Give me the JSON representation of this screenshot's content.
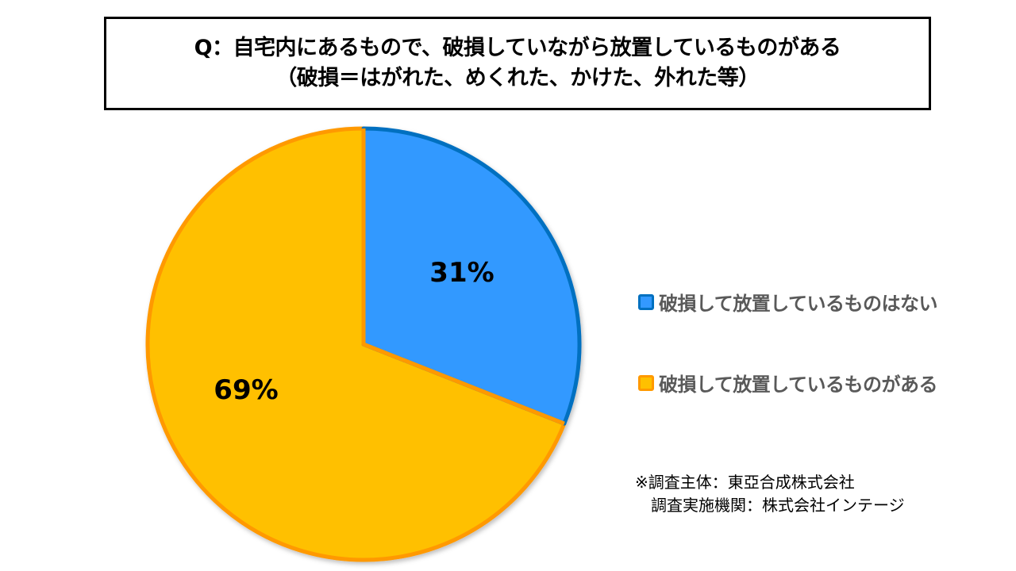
{
  "title": {
    "line1": "Q：自宅内にあるもので、破損していながら放置しているものがある",
    "line2": "（破損＝はがれた、めくれた、かけた、外れた等）"
  },
  "chart_data": {
    "type": "pie",
    "title": "Q：自宅内にあるもので、破損していながら放置しているものがある（破損＝はがれた、めくれた、かけた、外れた等）",
    "categories": [
      "破損して放置しているものはない",
      "破損して放置しているものがある"
    ],
    "values": [
      31,
      69
    ],
    "labels": [
      "31%",
      "69%"
    ],
    "colors": [
      "#3399FF",
      "#FFC000"
    ],
    "border_colors": [
      "#0070C0",
      "#FF9900"
    ],
    "start_angle": "top, clockwise",
    "legend_position": "right"
  },
  "legend": {
    "items": [
      {
        "label": "破損して放置しているものはない",
        "fill": "#3399FF",
        "border": "#0070C0"
      },
      {
        "label": "破損して放置しているものがある",
        "fill": "#FFC000",
        "border": "#FF9900"
      }
    ]
  },
  "note": {
    "line1": "※調査主体：東亞合成株式会社",
    "line2": "　調査実施機関：株式会社インテージ"
  }
}
